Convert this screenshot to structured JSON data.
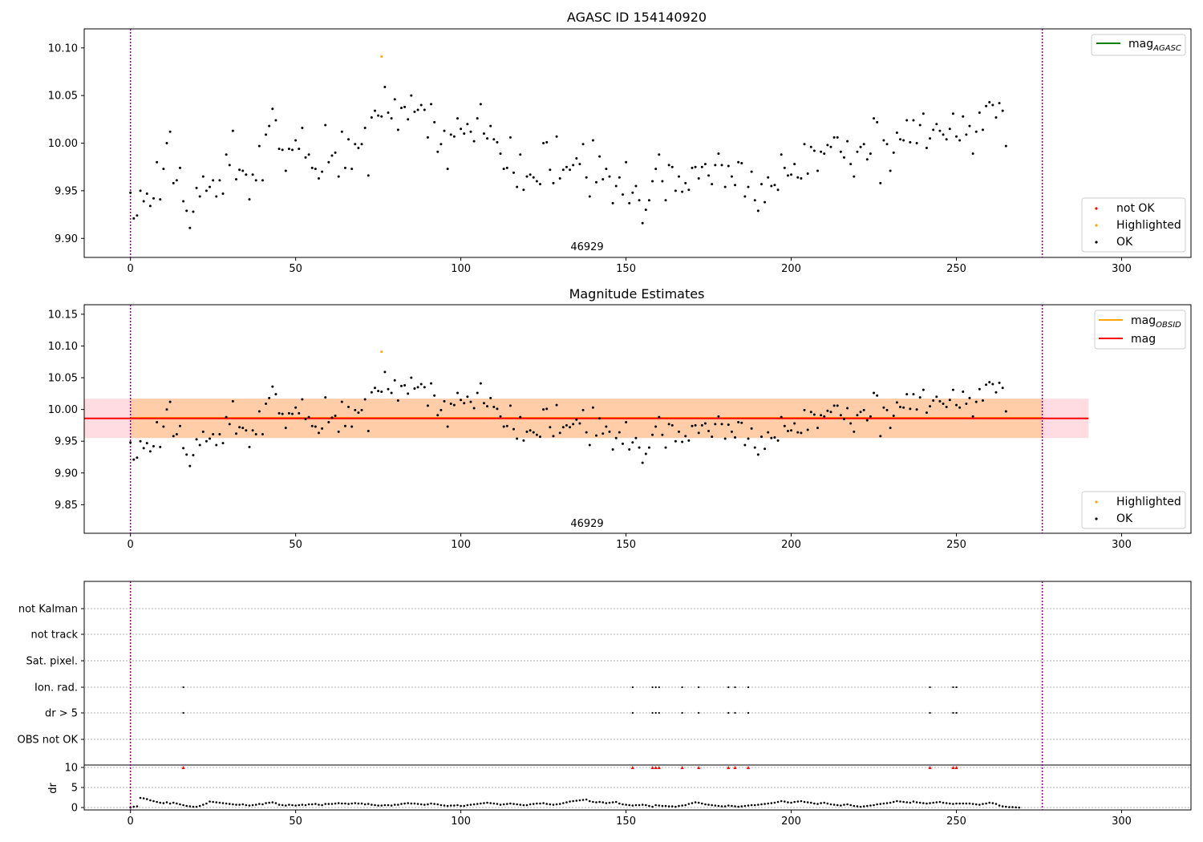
{
  "chart_data": [
    {
      "id": "top",
      "type": "scatter",
      "title": "AGASC ID 154140920",
      "xlim": [
        -14,
        321
      ],
      "ylim": [
        9.88,
        10.12
      ],
      "xticks": [
        0,
        50,
        100,
        150,
        200,
        250,
        300
      ],
      "yticks": [
        9.9,
        9.95,
        10.0,
        10.05,
        10.1
      ],
      "obs_bounds": [
        0,
        276
      ],
      "obs_label": "46929",
      "legend_lines": [
        {
          "label": "mag",
          "sub": "AGASC",
          "color": "#008000"
        }
      ],
      "legend_points": [
        {
          "label": "not OK",
          "color": "#ff0000"
        },
        {
          "label": "Highlighted",
          "color": "#ffa500"
        },
        {
          "label": "OK",
          "color": "#000000"
        }
      ]
    },
    {
      "id": "mid",
      "type": "scatter",
      "title": "Magnitude Estimates",
      "xlim": [
        -14,
        321
      ],
      "ylim": [
        9.805,
        10.165
      ],
      "xticks": [
        0,
        50,
        100,
        150,
        200,
        250,
        300
      ],
      "yticks": [
        9.85,
        9.9,
        9.95,
        10.0,
        10.05,
        10.1,
        10.15
      ],
      "obs_bounds": [
        0,
        276
      ],
      "obs_label": "46929",
      "mag_line": 9.986,
      "mag_band": [
        9.955,
        10.017
      ],
      "band_xrange": [
        -14,
        290
      ],
      "legend_lines": [
        {
          "label": "mag",
          "sub": "OBSID",
          "color": "#ffa500"
        },
        {
          "label": "mag",
          "sub": "",
          "color": "#ff0000"
        }
      ],
      "legend_points": [
        {
          "label": "Highlighted",
          "color": "#ffa500"
        },
        {
          "label": "OK",
          "color": "#000000"
        }
      ]
    },
    {
      "id": "flags",
      "type": "scatter",
      "xlim": [
        -14,
        321
      ],
      "categories": [
        "not Kalman",
        "not track",
        "Sat. pixel.",
        "Ion. rad.",
        "dr > 5",
        "OBS not OK"
      ],
      "flag_ion_rad": [
        16,
        152,
        158,
        159,
        160,
        167,
        172,
        181,
        183,
        187,
        242,
        249,
        250
      ],
      "flag_dr5": [
        16,
        152,
        158,
        159,
        160,
        167,
        172,
        181,
        183,
        187,
        242,
        249,
        250
      ],
      "obs_bounds": [
        0,
        276
      ]
    },
    {
      "id": "dr",
      "type": "scatter",
      "ylabel": "dr",
      "xlim": [
        -14,
        321
      ],
      "ylim": [
        -0.6,
        10.6
      ],
      "xticks": [
        0,
        50,
        100,
        150,
        200,
        250,
        300
      ],
      "yticks": [
        0,
        5,
        10
      ],
      "clipped_at_10": [
        16,
        152,
        158,
        159,
        160,
        167,
        172,
        181,
        183,
        187,
        242,
        249,
        250
      ],
      "obs_bounds": [
        0,
        276
      ]
    }
  ],
  "series": {
    "mag_points": [
      9.948,
      9.921,
      9.924,
      9.95,
      9.939,
      9.947,
      9.934,
      9.942,
      9.98,
      9.941,
      9.973,
      10.0,
      10.012,
      9.958,
      9.961,
      9.974,
      9.939,
      9.929,
      9.911,
      9.928,
      9.953,
      9.944,
      9.965,
      9.95,
      9.954,
      9.961,
      9.944,
      9.961,
      9.947,
      9.988,
      9.977,
      10.013,
      9.962,
      9.972,
      9.971,
      9.967,
      9.941,
      9.967,
      9.961,
      9.997,
      9.961,
      10.009,
      10.018,
      10.036,
      10.024,
      9.994,
      9.993,
      9.971,
      9.994,
      9.993,
      10.003,
      9.994,
      10.016,
      9.985,
      9.988,
      9.974,
      9.973,
      9.963,
      9.97,
      10.019,
      9.98,
      9.987,
      9.99,
      9.965,
      10.012,
      9.974,
      10.004,
      9.973,
      9.999,
      9.995,
      9.999,
      10.016,
      9.966,
      10.027,
      10.034,
      10.029,
      10.028,
      10.059,
      10.032,
      10.026,
      10.046,
      10.014,
      10.037,
      10.038,
      10.025,
      10.05,
      10.033,
      10.035,
      10.04,
      10.035,
      10.006,
      10.041,
      10.022,
      9.991,
      9.999,
      10.013,
      9.973,
      10.009,
      10.007,
      10.026,
      10.015,
      10.01,
      10.02,
      10.012,
      10.002,
      10.026,
      10.041,
      10.01,
      10.005,
      10.018,
      10.004,
      10.001,
      9.989,
      9.973,
      9.974,
      10.006,
      9.969,
      9.954,
      9.988,
      9.951,
      9.965,
      9.967,
      9.964,
      9.96,
      9.957,
      10.0,
      10.001,
      9.972,
      9.958,
      10.007,
      9.963,
      9.972,
      9.975,
      9.972,
      9.977,
      9.984,
      9.978,
      9.999,
      9.964,
      9.944,
      10.003,
      9.959,
      9.986,
      9.962,
      9.973,
      9.965,
      9.937,
      9.955,
      9.964,
      9.946,
      9.98,
      9.937,
      9.948,
      9.955,
      9.94,
      9.916,
      9.93,
      9.94,
      9.96,
      9.973,
      9.988,
      9.96,
      9.94,
      9.977,
      9.975,
      9.95,
      9.965,
      9.949,
      9.958,
      9.951,
      9.974,
      9.975,
      9.963,
      9.975,
      9.978,
      9.966,
      9.957,
      9.977,
      9.989,
      9.977,
      9.954,
      9.976,
      9.965,
      9.956,
      9.98,
      9.979,
      9.944,
      9.954,
      9.97,
      9.94,
      9.929,
      9.957,
      9.938,
      9.964,
      9.955,
      9.956,
      9.951,
      9.988,
      9.974,
      9.966,
      9.967,
      9.978,
      9.964,
      9.963,
      9.999,
      9.968,
      9.996,
      9.992,
      9.971,
      9.991,
      9.989,
      9.998,
      9.996,
      10.006,
      10.006,
      9.991,
      9.985,
      10.002,
      9.978,
      9.965,
      9.991,
      9.996,
      9.999,
      9.983,
      9.989,
      10.026,
      10.022,
      9.958,
      10.003,
      9.999,
      9.971,
      9.99,
      10.011,
      10.004,
      10.003,
      10.024,
      10.001,
      10.024,
      10.0,
      10.019,
      10.031,
      9.995,
      10.005,
      10.014,
      10.02,
      10.013,
      10.009,
      10.004,
      10.015,
      10.031,
      10.007,
      10.003,
      10.028,
      10.009,
      10.018,
      9.989,
      10.012,
      10.032,
      10.014,
      10.039,
      10.043,
      10.04,
      10.027,
      10.042,
      10.034,
      9.997
    ],
    "highlighted_index": 76,
    "highlighted_value": 10.091,
    "dr_values": [
      0.0,
      0.2,
      0.3,
      2.4,
      2.3,
      2.1,
      1.8,
      1.6,
      1.4,
      1.2,
      1.1,
      1.3,
      1.0,
      1.2,
      1.0,
      0.8,
      0.6,
      0.4,
      0.3,
      0.2,
      0.2,
      0.4,
      0.7,
      1.0,
      1.5,
      1.4,
      1.3,
      1.2,
      1.1,
      1.0,
      0.9,
      0.8,
      0.7,
      0.7,
      0.8,
      0.6,
      0.5,
      0.6,
      0.7,
      0.9,
      0.8,
      1.1,
      1.2,
      1.3,
      1.1,
      0.7,
      0.6,
      0.5,
      0.7,
      0.6,
      0.5,
      0.6,
      0.7,
      0.6,
      0.8,
      0.8,
      0.9,
      0.7,
      0.6,
      0.9,
      0.9,
      0.9,
      1.0,
      1.1,
      1.0,
      1.0,
      0.9,
      1.0,
      1.1,
      1.0,
      1.0,
      0.8,
      0.9,
      0.7,
      0.6,
      0.5,
      0.5,
      0.6,
      0.6,
      0.5,
      0.7,
      0.7,
      0.9,
      1.0,
      1.1,
      1.0,
      1.0,
      0.9,
      0.8,
      0.7,
      0.8,
      1.0,
      0.9,
      0.8,
      0.6,
      0.5,
      0.4,
      0.5,
      0.5,
      0.6,
      0.4,
      0.4,
      0.6,
      0.7,
      0.8,
      0.9,
      1.0,
      1.1,
      1.2,
      1.1,
      1.0,
      0.9,
      0.7,
      0.8,
      0.9,
      1.0,
      0.9,
      0.8,
      0.7,
      0.6,
      0.6,
      0.8,
      0.9,
      1.0,
      1.0,
      1.1,
      0.9,
      0.8,
      0.7,
      0.8,
      0.9,
      1.1,
      1.3,
      1.5,
      1.6,
      1.7,
      1.8,
      1.9,
      2.0,
      1.6,
      1.4,
      1.3,
      1.4,
      1.3,
      1.1,
      1.2,
      1.3,
      1.4,
      1.0,
      0.8,
      0.7,
      0.6,
      0.5,
      0.6,
      0.6,
      0.7,
      0.6,
      0.4,
      0.2,
      0.6,
      0.5,
      0.4,
      0.4,
      0.3,
      0.3,
      0.2,
      0.4,
      0.5,
      0.6,
      0.9,
      1.1,
      1.3,
      1.2,
      1.0,
      0.8,
      0.7,
      0.6,
      0.5,
      0.4,
      0.3,
      0.3,
      0.5,
      0.4,
      0.3,
      0.2,
      0.3,
      0.4,
      0.5,
      0.6,
      0.6,
      0.7,
      0.8,
      0.9,
      1.0,
      1.1,
      1.2,
      1.4,
      1.6,
      1.5,
      1.3,
      1.2,
      1.4,
      1.5,
      1.6,
      1.4,
      1.3,
      1.2,
      1.0,
      0.9,
      1.1,
      1.2,
      1.0,
      0.8,
      0.7,
      0.6,
      0.5,
      0.7,
      0.8,
      0.6,
      0.4,
      0.3,
      0.2,
      0.3,
      0.4,
      0.5,
      0.6,
      0.8,
      0.9,
      1.0,
      1.1,
      1.2,
      1.4,
      1.6,
      1.5,
      1.4,
      1.3,
      1.2,
      1.5,
      1.3,
      1.2,
      1.1,
      1.0,
      1.1,
      1.2,
      1.3,
      1.4,
      1.2,
      1.1,
      1.0,
      0.9,
      1.0,
      1.0,
      1.0,
      1.0,
      1.0,
      0.9,
      0.8,
      0.7,
      0.9,
      1.0,
      1.2,
      1.1,
      0.9,
      0.5,
      0.3,
      0.2,
      0.1,
      0.1,
      0.05,
      0.0
    ]
  }
}
